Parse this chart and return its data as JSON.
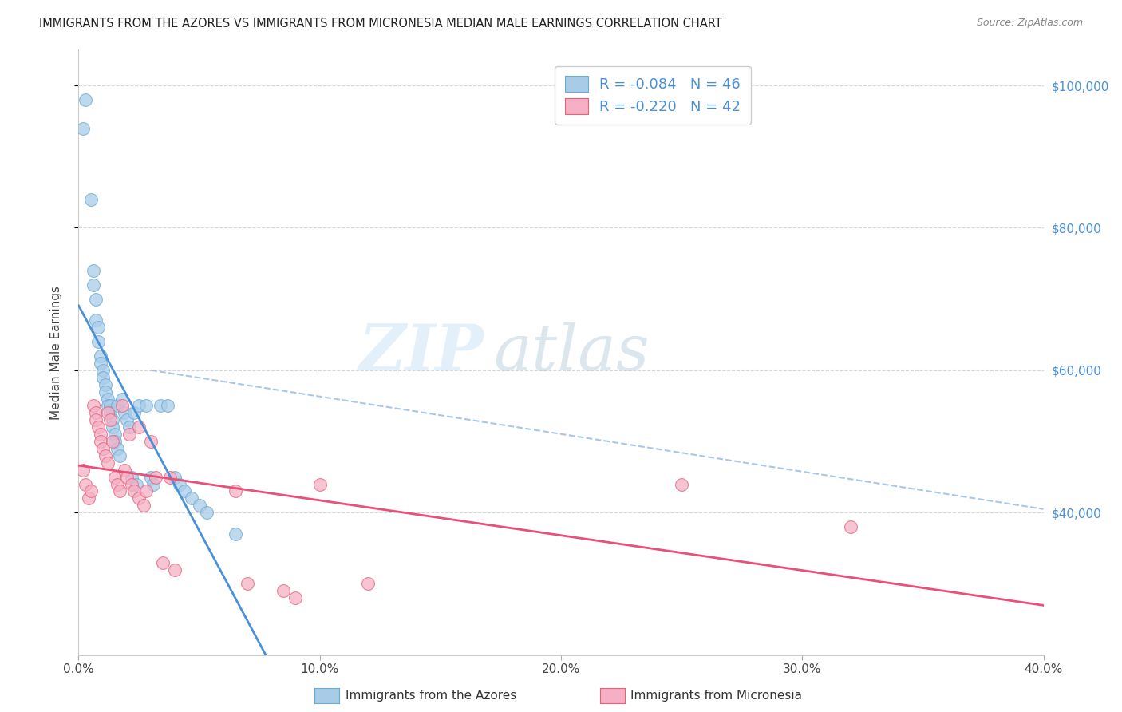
{
  "title": "IMMIGRANTS FROM THE AZORES VS IMMIGRANTS FROM MICRONESIA MEDIAN MALE EARNINGS CORRELATION CHART",
  "source": "Source: ZipAtlas.com",
  "ylabel": "Median Male Earnings",
  "watermark_zip": "ZIP",
  "watermark_atlas": "atlas",
  "legend_azores_r": "R = -0.084",
  "legend_azores_n": "N = 46",
  "legend_micronesia_r": "R = -0.220",
  "legend_micronesia_n": "N = 42",
  "azores_color": "#a8cce8",
  "azores_edge": "#6aaad4",
  "micronesia_color": "#f5b0c5",
  "micronesia_edge": "#e8607a",
  "blue_line_color": "#4a90d9",
  "pink_line_color": "#e8507a",
  "dashed_line_color": "#a0c0e8",
  "azores_x": [
    0.002,
    0.003,
    0.005,
    0.006,
    0.006,
    0.007,
    0.007,
    0.008,
    0.008,
    0.009,
    0.009,
    0.01,
    0.01,
    0.011,
    0.011,
    0.012,
    0.012,
    0.013,
    0.013,
    0.014,
    0.014,
    0.015,
    0.015,
    0.016,
    0.016,
    0.017,
    0.018,
    0.019,
    0.02,
    0.021,
    0.022,
    0.023,
    0.024,
    0.025,
    0.028,
    0.03,
    0.031,
    0.034,
    0.037,
    0.04,
    0.042,
    0.044,
    0.047,
    0.05,
    0.053,
    0.065
  ],
  "azores_y": [
    94000,
    98000,
    84000,
    72000,
    74000,
    70000,
    67000,
    66000,
    64000,
    62000,
    61000,
    60000,
    59000,
    58000,
    57000,
    56000,
    55000,
    55000,
    54000,
    53000,
    52000,
    51000,
    50000,
    55000,
    49000,
    48000,
    56000,
    54000,
    53000,
    52000,
    45000,
    54000,
    44000,
    55000,
    55000,
    45000,
    44000,
    55000,
    55000,
    45000,
    44000,
    43000,
    42000,
    41000,
    40000,
    37000
  ],
  "micronesia_x": [
    0.002,
    0.003,
    0.004,
    0.005,
    0.006,
    0.007,
    0.007,
    0.008,
    0.009,
    0.009,
    0.01,
    0.011,
    0.012,
    0.012,
    0.013,
    0.014,
    0.015,
    0.016,
    0.017,
    0.018,
    0.019,
    0.02,
    0.021,
    0.022,
    0.023,
    0.025,
    0.025,
    0.027,
    0.028,
    0.03,
    0.032,
    0.035,
    0.038,
    0.04,
    0.065,
    0.07,
    0.085,
    0.09,
    0.1,
    0.12,
    0.25,
    0.32
  ],
  "micronesia_y": [
    46000,
    44000,
    42000,
    43000,
    55000,
    54000,
    53000,
    52000,
    51000,
    50000,
    49000,
    48000,
    47000,
    54000,
    53000,
    50000,
    45000,
    44000,
    43000,
    55000,
    46000,
    45000,
    51000,
    44000,
    43000,
    52000,
    42000,
    41000,
    43000,
    50000,
    45000,
    33000,
    45000,
    32000,
    43000,
    30000,
    29000,
    28000,
    44000,
    30000,
    44000,
    38000
  ],
  "xlim": [
    0.0,
    0.4
  ],
  "ylim": [
    20000,
    105000
  ],
  "right_yticks": [
    40000,
    60000,
    80000,
    100000
  ],
  "right_yticklabels": [
    "$40,000",
    "$60,000",
    "$80,000",
    "$100,000"
  ],
  "xticks": [
    0.0,
    0.1,
    0.2,
    0.3,
    0.4
  ],
  "xticklabels": [
    "0.0%",
    "10.0%",
    "20.0%",
    "30.0%",
    "40.0%"
  ],
  "legend_label_azores": "R = -0.084   N = 46",
  "legend_label_micronesia": "R = -0.220   N = 42",
  "bottom_label_azores": "Immigrants from the Azores",
  "bottom_label_micronesia": "Immigrants from Micronesia"
}
